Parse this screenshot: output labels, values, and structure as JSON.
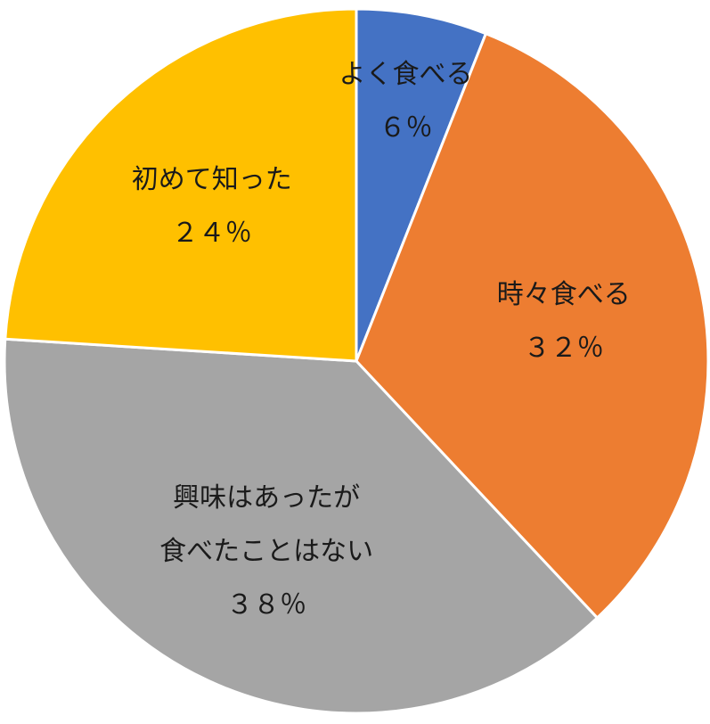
{
  "chart_data": {
    "type": "pie",
    "categories": [
      "よく食べる",
      "時々食べる",
      "興味はあったが\n食べたことはない",
      "初めて知った"
    ],
    "values": [
      6,
      32,
      38,
      24
    ],
    "value_labels": [
      "６％",
      "３２％",
      "３８％",
      "２４％"
    ],
    "colors": [
      "#4472c4",
      "#ed7d31",
      "#a5a5a5",
      "#ffc000"
    ]
  }
}
